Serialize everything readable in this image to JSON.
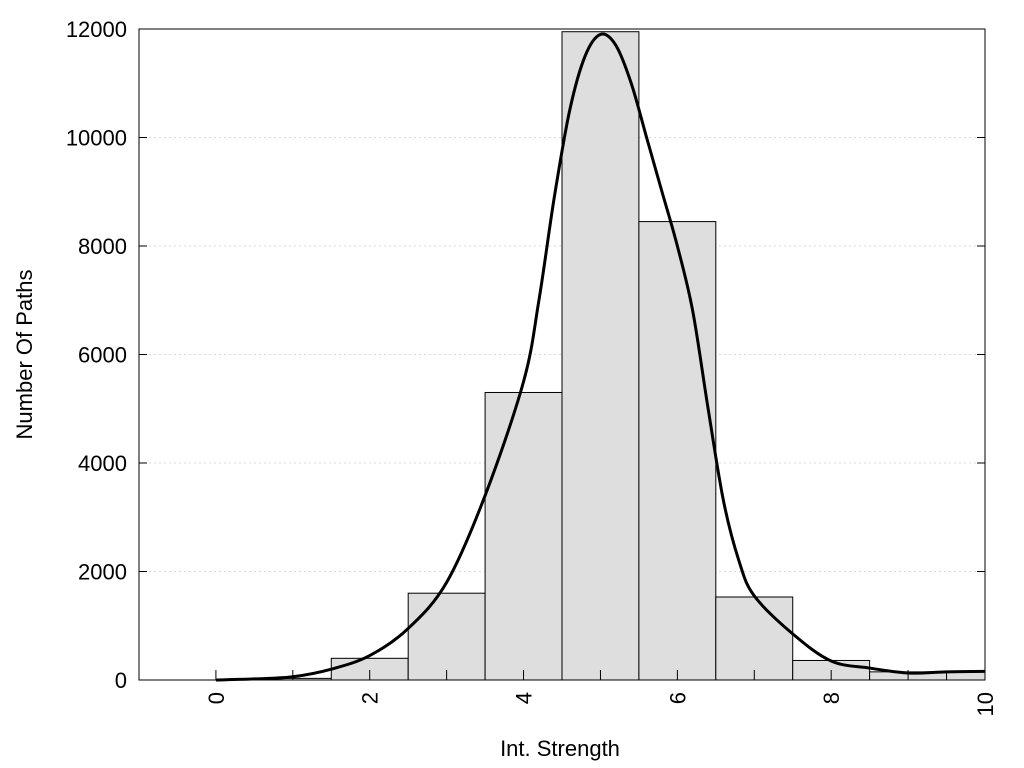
{
  "chart_data": {
    "type": "bar",
    "title": "",
    "xlabel": "Int. Strength",
    "ylabel": "Number Of Paths",
    "xlim": [
      -1,
      10
    ],
    "ylim": [
      0,
      12000
    ],
    "xticks": [
      0,
      2,
      4,
      6,
      8,
      10
    ],
    "yticks": [
      0,
      2000,
      4000,
      6000,
      8000,
      10000,
      12000
    ],
    "xtick_labels": [
      "0",
      "2",
      "4",
      "6",
      "8",
      "10"
    ],
    "ytick_labels": [
      "0",
      "2000",
      "4000",
      "6000",
      "8000",
      "10000",
      "12000"
    ],
    "grid": "horizontal dotted",
    "bin_width": 1,
    "bars": [
      {
        "x": 0,
        "value": 0
      },
      {
        "x": 1,
        "value": 30
      },
      {
        "x": 2,
        "value": 400
      },
      {
        "x": 3,
        "value": 1600
      },
      {
        "x": 4,
        "value": 5300
      },
      {
        "x": 5,
        "value": 11950
      },
      {
        "x": 6,
        "value": 8450
      },
      {
        "x": 7,
        "value": 1530
      },
      {
        "x": 8,
        "value": 360
      },
      {
        "x": 9,
        "value": 150
      },
      {
        "x": 10,
        "value": 150
      }
    ],
    "curve": {
      "x": [
        0,
        0.5,
        1,
        1.5,
        2,
        2.5,
        3,
        3.5,
        4,
        4.2,
        4.4,
        4.6,
        4.8,
        5,
        5.2,
        5.4,
        5.6,
        5.8,
        6,
        6.2,
        6.4,
        6.6,
        6.8,
        7,
        7.5,
        8,
        8.5,
        9,
        9.5,
        10
      ],
      "y": [
        0,
        20,
        60,
        200,
        450,
        950,
        1800,
        3400,
        5500,
        7000,
        8900,
        10500,
        11500,
        11900,
        11700,
        11000,
        10000,
        9000,
        8000,
        6800,
        5000,
        3300,
        2200,
        1550,
        850,
        350,
        220,
        130,
        150,
        160
      ]
    },
    "colors": {
      "bar_fill": "#dedede",
      "bar_stroke": "#000000",
      "curve": "#000000",
      "grid": "#d9d9d9"
    }
  }
}
